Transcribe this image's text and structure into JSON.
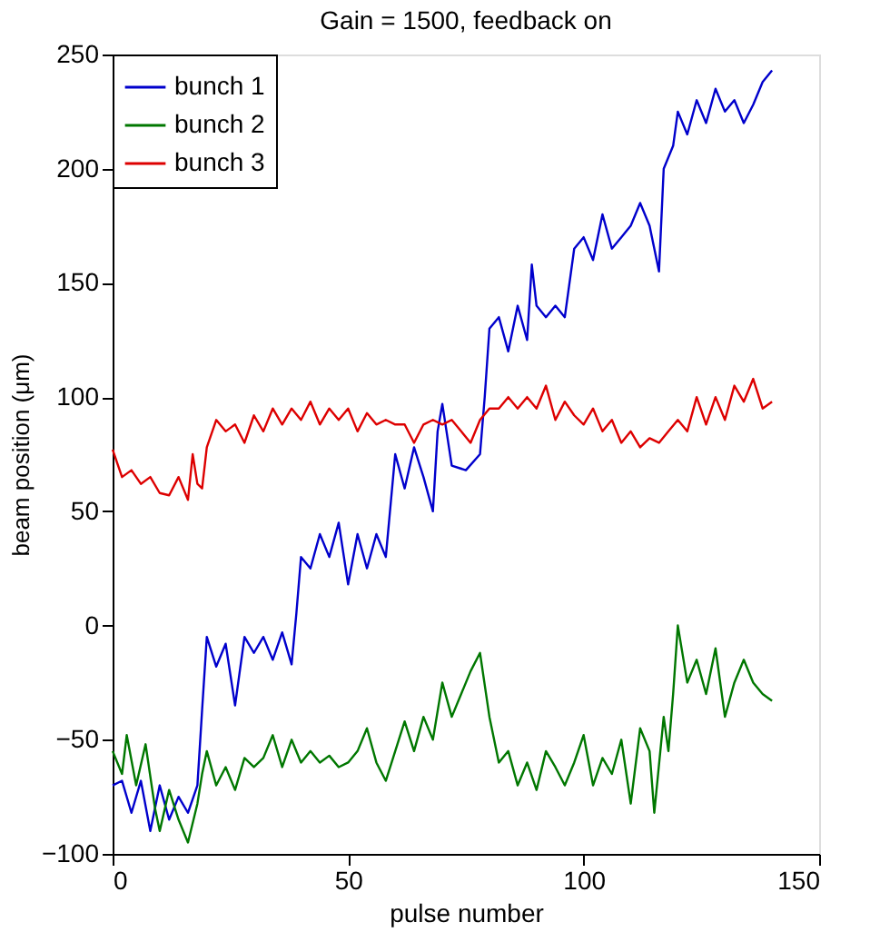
{
  "chart_data": {
    "type": "line",
    "title": "Gain = 1500, feedback on",
    "xlabel": "pulse number",
    "ylabel": "beam position (μm)",
    "xlim": [
      0,
      150
    ],
    "xticks": [
      0,
      50,
      100,
      150
    ],
    "ylim": [
      -100,
      250
    ],
    "yticks": [
      -100,
      -50,
      0,
      50,
      100,
      150,
      200,
      250
    ],
    "grid": false,
    "legend": "top left",
    "line_style": "solid",
    "marker": "none",
    "series": [
      {
        "name": "bunch 1",
        "color": "#0000cc",
        "x": [
          0,
          2,
          4,
          6,
          8,
          10,
          12,
          14,
          16,
          18,
          19,
          20,
          22,
          24,
          26,
          28,
          30,
          32,
          34,
          36,
          38,
          39,
          40,
          42,
          44,
          46,
          48,
          50,
          52,
          54,
          56,
          58,
          60,
          62,
          64,
          66,
          68,
          69,
          70,
          72,
          75,
          78,
          79,
          80,
          82,
          84,
          86,
          88,
          89,
          90,
          92,
          94,
          96,
          98,
          100,
          102,
          104,
          106,
          108,
          110,
          112,
          114,
          116,
          117,
          119,
          120,
          122,
          124,
          126,
          128,
          130,
          132,
          134,
          136,
          138,
          140
        ],
        "values": [
          -70,
          -68,
          -82,
          -68,
          -90,
          -70,
          -85,
          -75,
          -82,
          -70,
          -37,
          -5,
          -18,
          -8,
          -35,
          -5,
          -12,
          -5,
          -15,
          -3,
          -17,
          5,
          30,
          25,
          40,
          30,
          45,
          18,
          40,
          25,
          40,
          30,
          75,
          60,
          78,
          65,
          50,
          85,
          97,
          70,
          68,
          75,
          100,
          130,
          135,
          120,
          140,
          125,
          158,
          140,
          135,
          140,
          135,
          165,
          170,
          160,
          180,
          165,
          170,
          175,
          185,
          175,
          155,
          200,
          210,
          225,
          215,
          230,
          220,
          235,
          225,
          230,
          220,
          228,
          238,
          243
        ]
      },
      {
        "name": "bunch 2",
        "color": "#007700",
        "x": [
          0,
          2,
          3,
          5,
          7,
          9,
          10,
          12,
          14,
          16,
          18,
          19,
          20,
          22,
          24,
          26,
          28,
          30,
          32,
          34,
          36,
          38,
          40,
          42,
          44,
          46,
          48,
          50,
          52,
          54,
          56,
          58,
          60,
          62,
          64,
          66,
          68,
          70,
          72,
          74,
          76,
          78,
          80,
          82,
          84,
          86,
          88,
          90,
          92,
          94,
          96,
          98,
          100,
          102,
          104,
          106,
          108,
          110,
          112,
          114,
          115,
          117,
          118,
          119,
          120,
          122,
          124,
          126,
          128,
          130,
          132,
          134,
          136,
          138,
          140
        ],
        "values": [
          -55,
          -65,
          -48,
          -70,
          -52,
          -80,
          -90,
          -72,
          -85,
          -95,
          -78,
          -65,
          -55,
          -70,
          -62,
          -72,
          -58,
          -62,
          -58,
          -48,
          -62,
          -50,
          -60,
          -55,
          -60,
          -57,
          -62,
          -60,
          -55,
          -45,
          -60,
          -68,
          -55,
          -42,
          -55,
          -40,
          -50,
          -25,
          -40,
          -30,
          -20,
          -12,
          -40,
          -60,
          -55,
          -70,
          -60,
          -72,
          -55,
          -62,
          -70,
          -60,
          -48,
          -70,
          -58,
          -65,
          -50,
          -78,
          -45,
          -55,
          -82,
          -40,
          -55,
          -30,
          0,
          -25,
          -15,
          -30,
          -10,
          -40,
          -25,
          -15,
          -25,
          -30,
          -33
        ]
      },
      {
        "name": "bunch 3",
        "color": "#dd0000",
        "x": [
          0,
          2,
          4,
          6,
          8,
          10,
          12,
          14,
          16,
          17,
          18,
          19,
          20,
          22,
          24,
          26,
          28,
          30,
          32,
          34,
          36,
          38,
          40,
          42,
          44,
          46,
          48,
          50,
          52,
          54,
          56,
          58,
          60,
          62,
          64,
          66,
          68,
          70,
          72,
          74,
          76,
          78,
          80,
          82,
          84,
          86,
          88,
          90,
          92,
          94,
          96,
          98,
          100,
          102,
          104,
          106,
          108,
          110,
          112,
          114,
          116,
          118,
          120,
          122,
          124,
          126,
          128,
          130,
          132,
          134,
          136,
          138,
          140
        ],
        "values": [
          77,
          65,
          68,
          62,
          65,
          58,
          57,
          65,
          55,
          75,
          62,
          60,
          78,
          90,
          85,
          88,
          80,
          92,
          85,
          95,
          88,
          95,
          90,
          98,
          88,
          95,
          90,
          95,
          85,
          93,
          88,
          90,
          88,
          88,
          80,
          88,
          90,
          88,
          90,
          85,
          80,
          90,
          95,
          95,
          100,
          95,
          100,
          95,
          105,
          90,
          98,
          92,
          88,
          95,
          85,
          90,
          80,
          85,
          78,
          82,
          80,
          85,
          90,
          85,
          100,
          88,
          100,
          90,
          105,
          98,
          108,
          95,
          98
        ]
      }
    ]
  }
}
